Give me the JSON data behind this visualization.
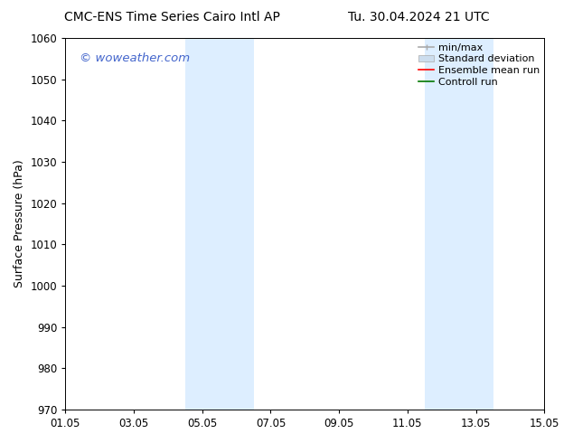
{
  "title_left": "CMC-ENS Time Series Cairo Intl AP",
  "title_right": "Tu. 30.04.2024 21 UTC",
  "ylabel": "Surface Pressure (hPa)",
  "ylim": [
    970,
    1060
  ],
  "yticks": [
    970,
    980,
    990,
    1000,
    1010,
    1020,
    1030,
    1040,
    1050,
    1060
  ],
  "xlim_start": 0,
  "xlim_end": 14,
  "xtick_positions": [
    0,
    2,
    4,
    6,
    8,
    10,
    12,
    14
  ],
  "xtick_labels": [
    "01.05",
    "03.05",
    "05.05",
    "07.05",
    "09.05",
    "11.05",
    "13.05",
    "15.05"
  ],
  "shaded_regions": [
    {
      "xmin": 3.5,
      "xmax": 5.5
    },
    {
      "xmin": 10.5,
      "xmax": 12.5
    }
  ],
  "shade_color": "#ddeeff",
  "background_color": "#ffffff",
  "plot_bg_color": "#ffffff",
  "watermark_text": "© woweather.com",
  "watermark_color": "#4466cc",
  "legend_labels": [
    "min/max",
    "Standard deviation",
    "Ensemble mean run",
    "Controll run"
  ],
  "legend_handle_colors_line": [
    "#999999",
    null,
    "#ff0000",
    "#007700"
  ],
  "legend_patch_color": "#ccddee",
  "title_fontsize": 10,
  "axis_fontsize": 9,
  "tick_fontsize": 8.5,
  "legend_fontsize": 8
}
